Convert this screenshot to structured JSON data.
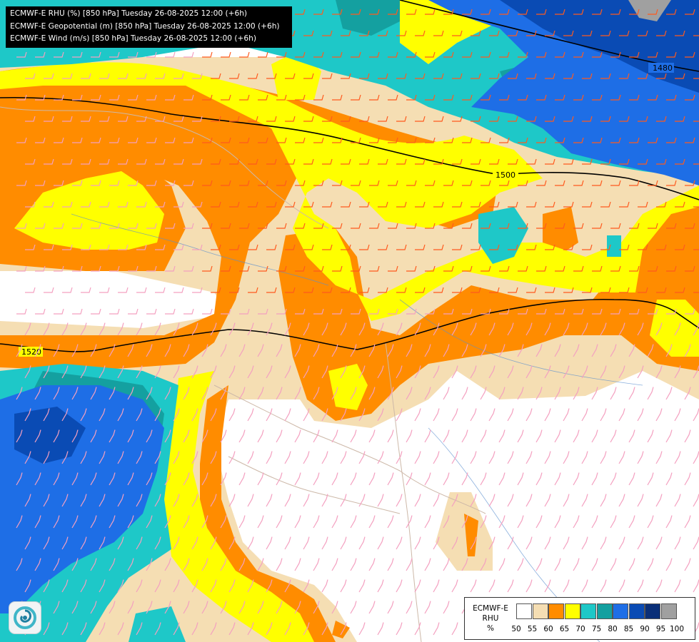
{
  "header": {
    "lines": [
      "ECMWF-E RHU (%) [850 hPa] Tuesday 26-08-2025 12:00 (+6h)",
      "ECMWF-E Geopotential (m) [850 hPa] Tuesday 26-08-2025 12:00 (+6h)",
      "ECMWF-E Wind (m/s) [850 hPa] Tuesday 26-08-2025 12:00 (+6h)"
    ]
  },
  "contour_labels": [
    "1480",
    "1500",
    "1520"
  ],
  "legend": {
    "label_lines": [
      "ECMWF-E",
      "RHU",
      "%"
    ],
    "bins": [
      {
        "value": "50",
        "color": "#ffffff"
      },
      {
        "value": "55",
        "color": "#f5deb3"
      },
      {
        "value": "60",
        "color": "#ff8c00"
      },
      {
        "value": "65",
        "color": "#ffff00"
      },
      {
        "value": "70",
        "color": "#1ec8c8"
      },
      {
        "value": "75",
        "color": "#14a0a0"
      },
      {
        "value": "80",
        "color": "#1e6ee6"
      },
      {
        "value": "85",
        "color": "#0a4bb4"
      },
      {
        "value": "90",
        "color": "#0a2f78"
      },
      {
        "value": "95",
        "color": "#a0a0a0"
      },
      {
        "value": "100",
        "color": "#606060"
      }
    ]
  },
  "logo": {
    "icon": "ecmwf-swirl-logo-icon"
  }
}
